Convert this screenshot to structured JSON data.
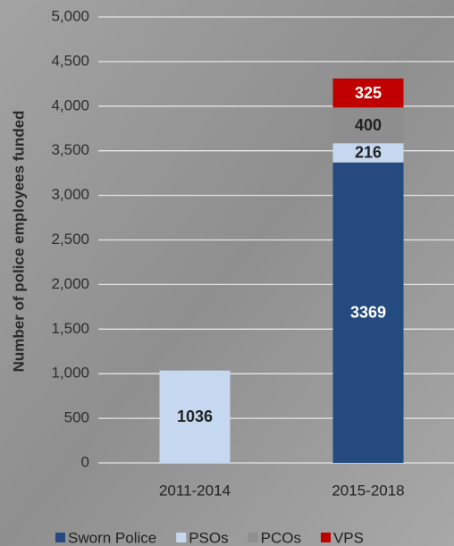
{
  "chart_data": {
    "type": "stacked_bar",
    "y_label": "Number of police employees funded",
    "categories": [
      "2011-2014",
      "2015-2018"
    ],
    "series": [
      {
        "name": "Sworn Police",
        "color": "#244a80",
        "label_color": "#ffffff",
        "values": [
          null,
          3369
        ]
      },
      {
        "name": "PSOs",
        "color": "#c6d8ef",
        "label_color": "#222222",
        "values": [
          1036,
          216
        ]
      },
      {
        "name": "PCOs",
        "color": "#8e8e8e",
        "label_color": "#222222",
        "values": [
          null,
          400
        ]
      },
      {
        "name": "VPS",
        "color": "#c00000",
        "label_color": "#ffffff",
        "values": [
          null,
          325
        ]
      }
    ],
    "ylim": [
      0,
      5000
    ],
    "yticks": [
      0,
      500,
      {
        "value": 1000,
        "label": "1,000"
      },
      {
        "value": 1500,
        "label": "1,500"
      },
      {
        "value": 2000,
        "label": "2,000"
      },
      {
        "value": 2500,
        "label": "2,500"
      },
      {
        "value": 3000,
        "label": "3,000"
      },
      {
        "value": 3500,
        "label": "3,500"
      },
      {
        "value": 4000,
        "label": "4,000"
      },
      {
        "value": 4500,
        "label": "4,500"
      },
      {
        "value": 5000,
        "label": "5,000"
      }
    ],
    "grid": true
  }
}
